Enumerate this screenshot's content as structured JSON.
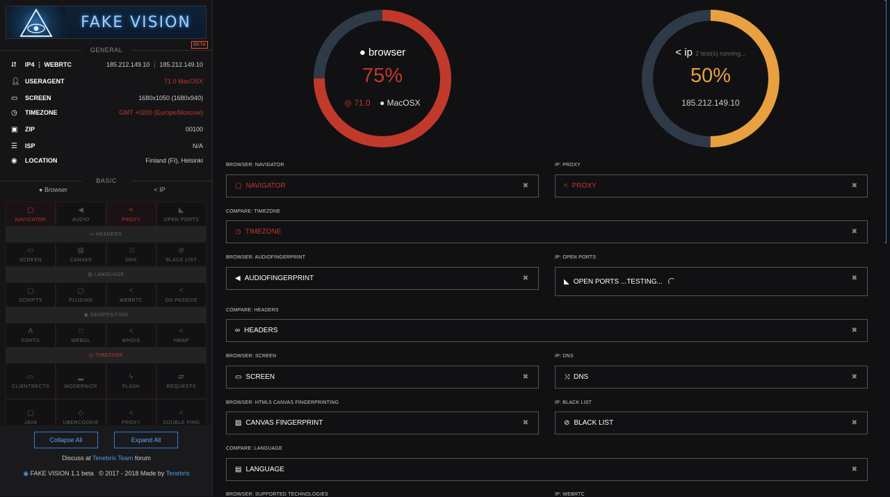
{
  "brand": {
    "name": "FAKE VISION",
    "beta": "BETA"
  },
  "general": {
    "title": "GENERAL",
    "rows": [
      {
        "label": "IP4 ⋮ WEBRTC",
        "value": "185.212.149.10  ⋮ 185.212.149.10",
        "icon": "share-icon"
      },
      {
        "label": "USERAGENT",
        "value": "71.0   MacOSX",
        "icon": "user-icon"
      },
      {
        "label": "SCREEN",
        "value": "1680x1050 (1680x940)",
        "icon": "monitor-icon"
      },
      {
        "label": "TIMEZONE",
        "value": "GMT +0200 (Europe/Moscow)",
        "icon": "clock-icon"
      },
      {
        "label": "ZIP",
        "value": "00100",
        "icon": "truck-icon"
      },
      {
        "label": "ISP",
        "value": "N/A",
        "icon": "server-icon"
      },
      {
        "label": "LOCATION",
        "value": "Finland (FI), Helsinki",
        "icon": "pin-icon"
      }
    ]
  },
  "basic": {
    "title": "BASIC",
    "tab_browser": "Browser",
    "tab_ip": "IP",
    "row1": [
      "NAVIGATOR",
      "AUDIO",
      "PROXY",
      "OPEN PORTS"
    ],
    "bar1": "HEADERS",
    "row2": [
      "SCREEN",
      "CANVAS",
      "DNS",
      "BLACK LIST"
    ],
    "bar2": "LANGUAGE",
    "row3": [
      "SCRIPTS",
      "PLUGINS",
      "WEBRTC",
      "OS PASSIVE"
    ],
    "bar3": "GEOPOSITION",
    "row4": [
      "FONTS",
      "WEBGL",
      "WHOIS",
      "NMAP"
    ],
    "bar4": "TIMEZONE",
    "row5": [
      "CLIENTRECTS",
      "MODERNIZR",
      "FLASH",
      "REQUESTS"
    ],
    "row6": [
      "JAVA",
      "UBERCOOKIE",
      "PROXY",
      "DOUBLE PING"
    ]
  },
  "footer": {
    "collapse": "Collapse All",
    "expand": "Expand All",
    "discuss_pre": "Discuss at ",
    "discuss_link": "Tenebris Team",
    "discuss_post": " forum",
    "app": "FAKE VISION 1.1 beta",
    "copy": "© 2017 - 2018 Made by ",
    "copy_link": "Tenebris"
  },
  "gauges": {
    "browser": {
      "title": "browser",
      "pct": "75%",
      "value": 0.75,
      "version": "71.0",
      "os": "MacOSX",
      "color": "#c0392b"
    },
    "ip": {
      "title": "ip",
      "running": "2 test(s) running...",
      "pct": "50%",
      "value": 0.5,
      "address": "185.212.149.10",
      "color": "#e8a040"
    }
  },
  "cards": [
    {
      "label": "BROWSER: NAVIGATOR",
      "title": "NAVIGATOR",
      "red": true
    },
    {
      "label": "IP: PROXY",
      "title": "PROXY",
      "red": true
    },
    {
      "label": "COMPARE: TIMEZONE",
      "title": "TIMEZONE",
      "red": true
    },
    {
      "label": "BROWSER: AUDIOFINGERPRINT",
      "title": "AUDIOFINGERPRINT",
      "red": false
    },
    {
      "label": "IP: OPEN PORTS",
      "title": "OPEN PORTS ...TESTING...",
      "red": false
    },
    {
      "label": "COMPARE: HEADERS",
      "title": "HEADERS",
      "red": false
    },
    {
      "label": "BROWSER: SCREEN",
      "title": "SCREEN",
      "red": false
    },
    {
      "label": "IP: DNS",
      "title": "DNS",
      "red": false
    },
    {
      "label": "BROWSER: HTML5 CANVAS FINGERPRINTING",
      "title": "CANVAS FINGERPRINT",
      "red": false
    },
    {
      "label": "IP: BLACK LIST",
      "title": "BLACK LIST",
      "red": false
    },
    {
      "label": "COMPARE: LANGUAGE",
      "title": "LANGUAGE",
      "red": false
    },
    {
      "label": "BROWSER: SUPPORTED TECHNOLOGIES",
      "title": "",
      "red": false
    },
    {
      "label": "IP: WEBRTC",
      "title": "",
      "red": false
    }
  ],
  "close_glyph": "✖"
}
